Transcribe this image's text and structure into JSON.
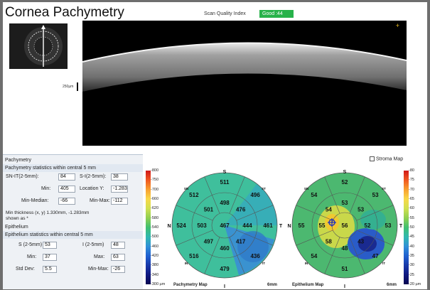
{
  "header": {
    "title": "Cornea Pachymetry",
    "scan_quality_label": "Scan Quality Index",
    "scan_quality_value": "Good :44",
    "scan_quality_color": "#27b24a",
    "yellow_marker": "+"
  },
  "oct": {
    "scale_label": "250µm"
  },
  "pachymetry": {
    "section_title": "Pachymetry",
    "stats_title": "Pachymetry statistics within central 5 mm",
    "sn_it_label": "SN-IT(2-5mm):",
    "sn_it_value": "84",
    "s_i_label": "S-I(2-5mm):",
    "s_i_value": "38",
    "min_label": "Min:",
    "min_value": "405",
    "loc_y_label": "Location Y:",
    "loc_y_value": "-1.283",
    "min_median_label": "Min-Median:",
    "min_median_value": "-66",
    "min_max_label": "Min-Max:",
    "min_max_value": "-112",
    "min_thickness_note": "Min thickness (x, y) 1.330mm, -1.283mm",
    "shown_as_note": "shown as *"
  },
  "epithelium": {
    "section_title": "Epithelium",
    "stats_title": "Epithelium statistics within central 5 mm",
    "s_label": "S (2-5mm)",
    "s_value": "53",
    "i_label": "I (2-5mm)",
    "i_value": "48",
    "min_label": "Min:",
    "min_value": "37",
    "max_label": "Max:",
    "max_value": "63",
    "std_label": "Std Dev:",
    "std_value": "5.5",
    "min_max_label": "Min-Max:",
    "min_max_value": "-26"
  },
  "pachy_colorbar": {
    "ticks": [
      "800",
      "750",
      "700",
      "660",
      "620",
      "580",
      "540",
      "500",
      "460",
      "420",
      "380",
      "340",
      "300 µm"
    ],
    "colors": [
      "#d01818",
      "#f05820",
      "#f8a030",
      "#f8d848",
      "#d0e050",
      "#90d050",
      "#40c070",
      "#30b8b0",
      "#3090d8",
      "#2060d0",
      "#1838a8",
      "#101880",
      "#080850"
    ]
  },
  "epi_colorbar": {
    "ticks": [
      "80",
      "75",
      "70",
      "65",
      "60",
      "55",
      "50",
      "45",
      "40",
      "35",
      "30",
      "25",
      "20 µm"
    ],
    "colors": [
      "#d01818",
      "#f05820",
      "#f8a030",
      "#f8d848",
      "#d0e050",
      "#90d050",
      "#40c070",
      "#30b8b0",
      "#3090d8",
      "#2060d0",
      "#1838a8",
      "#101880",
      "#080850"
    ]
  },
  "pachy_map": {
    "caption": "Pachymetry Map",
    "scale_label": "6mm",
    "dir_S": "S",
    "dir_N": "N",
    "dir_T": "T",
    "dir_I": "I",
    "dir_SN": "SN",
    "dir_ST": "ST",
    "dir_IN": "IN",
    "dir_IT": "IT",
    "center": "467",
    "inner_S": "498",
    "inner_ST": "476",
    "inner_T": "444",
    "inner_IT": "417",
    "inner_I": "460",
    "inner_IN": "497",
    "inner_N": "503",
    "inner_SN": "501",
    "outer_S": "511",
    "outer_ST": "496",
    "outer_T": "461",
    "outer_IT": "436",
    "outer_I": "479",
    "outer_IN": "516",
    "outer_N": "524",
    "outer_SN": "512"
  },
  "epi_map": {
    "caption": "Epithelium Map",
    "scale_label": "6mm",
    "dir_S": "S",
    "dir_N": "N",
    "dir_T": "T",
    "dir_I": "I",
    "dir_SN": "SN",
    "dir_ST": "ST",
    "dir_IN": "IN",
    "dir_IT": "IT",
    "center": "56",
    "inner_S": "53",
    "inner_ST": "53",
    "inner_T": "52",
    "inner_IT": "43",
    "inner_I": "48",
    "inner_IN": "58",
    "inner_N": "55",
    "inner_SN": "54",
    "outer_S": "52",
    "outer_ST": "53",
    "outer_T": "53",
    "outer_IT": "47",
    "outer_I": "51",
    "outer_IN": "54",
    "outer_N": "55",
    "outer_SN": "54"
  },
  "stroma_label": "Stroma Map"
}
